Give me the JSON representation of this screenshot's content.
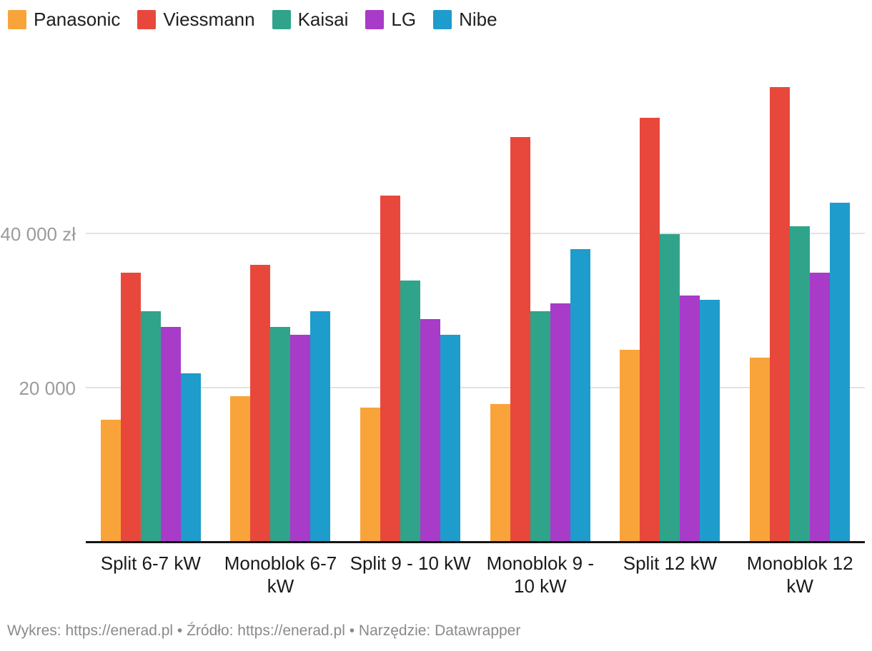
{
  "chart_data": {
    "type": "bar",
    "title": "",
    "categories": [
      "Split 6-7 kW",
      "Monoblok 6-7 kW",
      "Split 9 - 10 kW",
      "Monoblok 9 - 10 kW",
      "Split 12 kW",
      "Monoblok 12 kW"
    ],
    "series": [
      {
        "name": "Panasonic",
        "color": "#f9a43a",
        "values": [
          16000,
          19000,
          17500,
          18000,
          25000,
          24000
        ]
      },
      {
        "name": "Viessmann",
        "color": "#e8483c",
        "values": [
          35000,
          36000,
          45000,
          52500,
          55000,
          59000
        ]
      },
      {
        "name": "Kaisai",
        "color": "#2fa48b",
        "values": [
          30000,
          28000,
          34000,
          30000,
          40000,
          41000
        ]
      },
      {
        "name": "LG",
        "color": "#a83bc8",
        "values": [
          28000,
          27000,
          29000,
          31000,
          32000,
          35000
        ]
      },
      {
        "name": "Nibe",
        "color": "#1e9ccb",
        "values": [
          22000,
          30000,
          27000,
          38000,
          31500,
          44000
        ]
      }
    ],
    "unit": "zł",
    "ylabel": "",
    "xlabel": "",
    "ylim": [
      0,
      60000
    ],
    "y_ticks": [
      {
        "value": 20000,
        "label": "20 000"
      },
      {
        "value": 40000,
        "label": "40 000 zł"
      }
    ],
    "grid": "horizontal",
    "legend_position": "top-left"
  },
  "footer": {
    "text": "Wykres: https://enerad.pl • Źródło: https://enerad.pl • Narzędzie: Datawrapper"
  }
}
